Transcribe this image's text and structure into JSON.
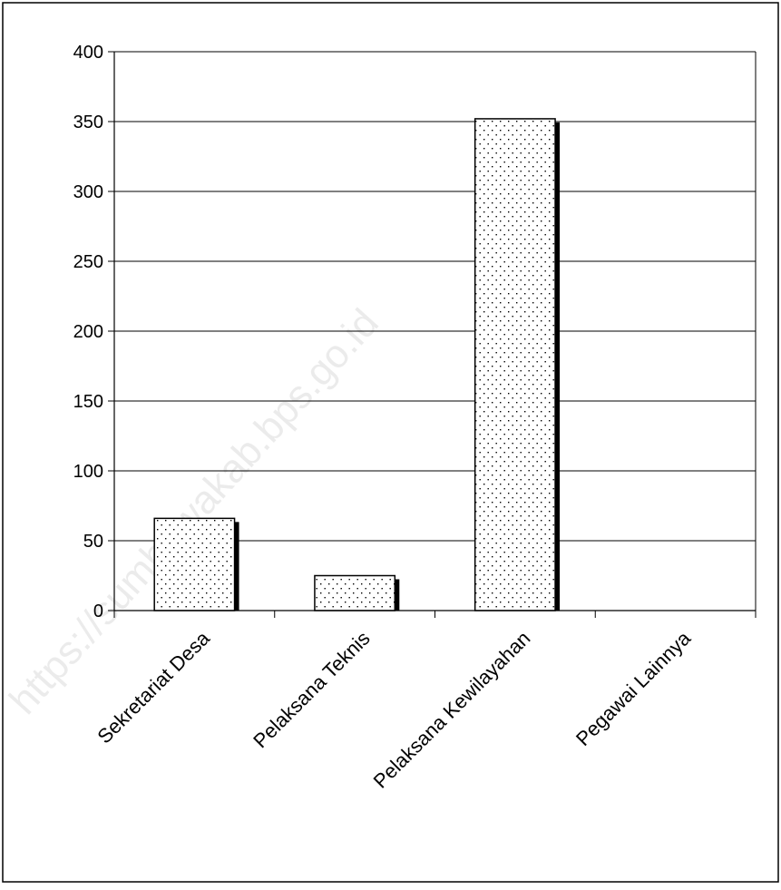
{
  "watermark": "https://sumbawakab.bps.go.id",
  "chart_data": {
    "type": "bar",
    "title": "",
    "xlabel": "",
    "ylabel": "",
    "categories": [
      "Sekretariat Desa",
      "Pelaksana Teknis",
      "Pelaksana Kewilayahan",
      "Pegawai Lainnya"
    ],
    "values": [
      66,
      25,
      352,
      0
    ],
    "ylim": [
      0,
      400
    ],
    "yticks": [
      0,
      50,
      100,
      150,
      200,
      250,
      300,
      350,
      400
    ],
    "grid": true,
    "legend": "none",
    "bar_fill": "dotted pattern",
    "bar_color": "#ffffff",
    "bar_edge_color": "#000000",
    "shadow_color": "#000000"
  }
}
